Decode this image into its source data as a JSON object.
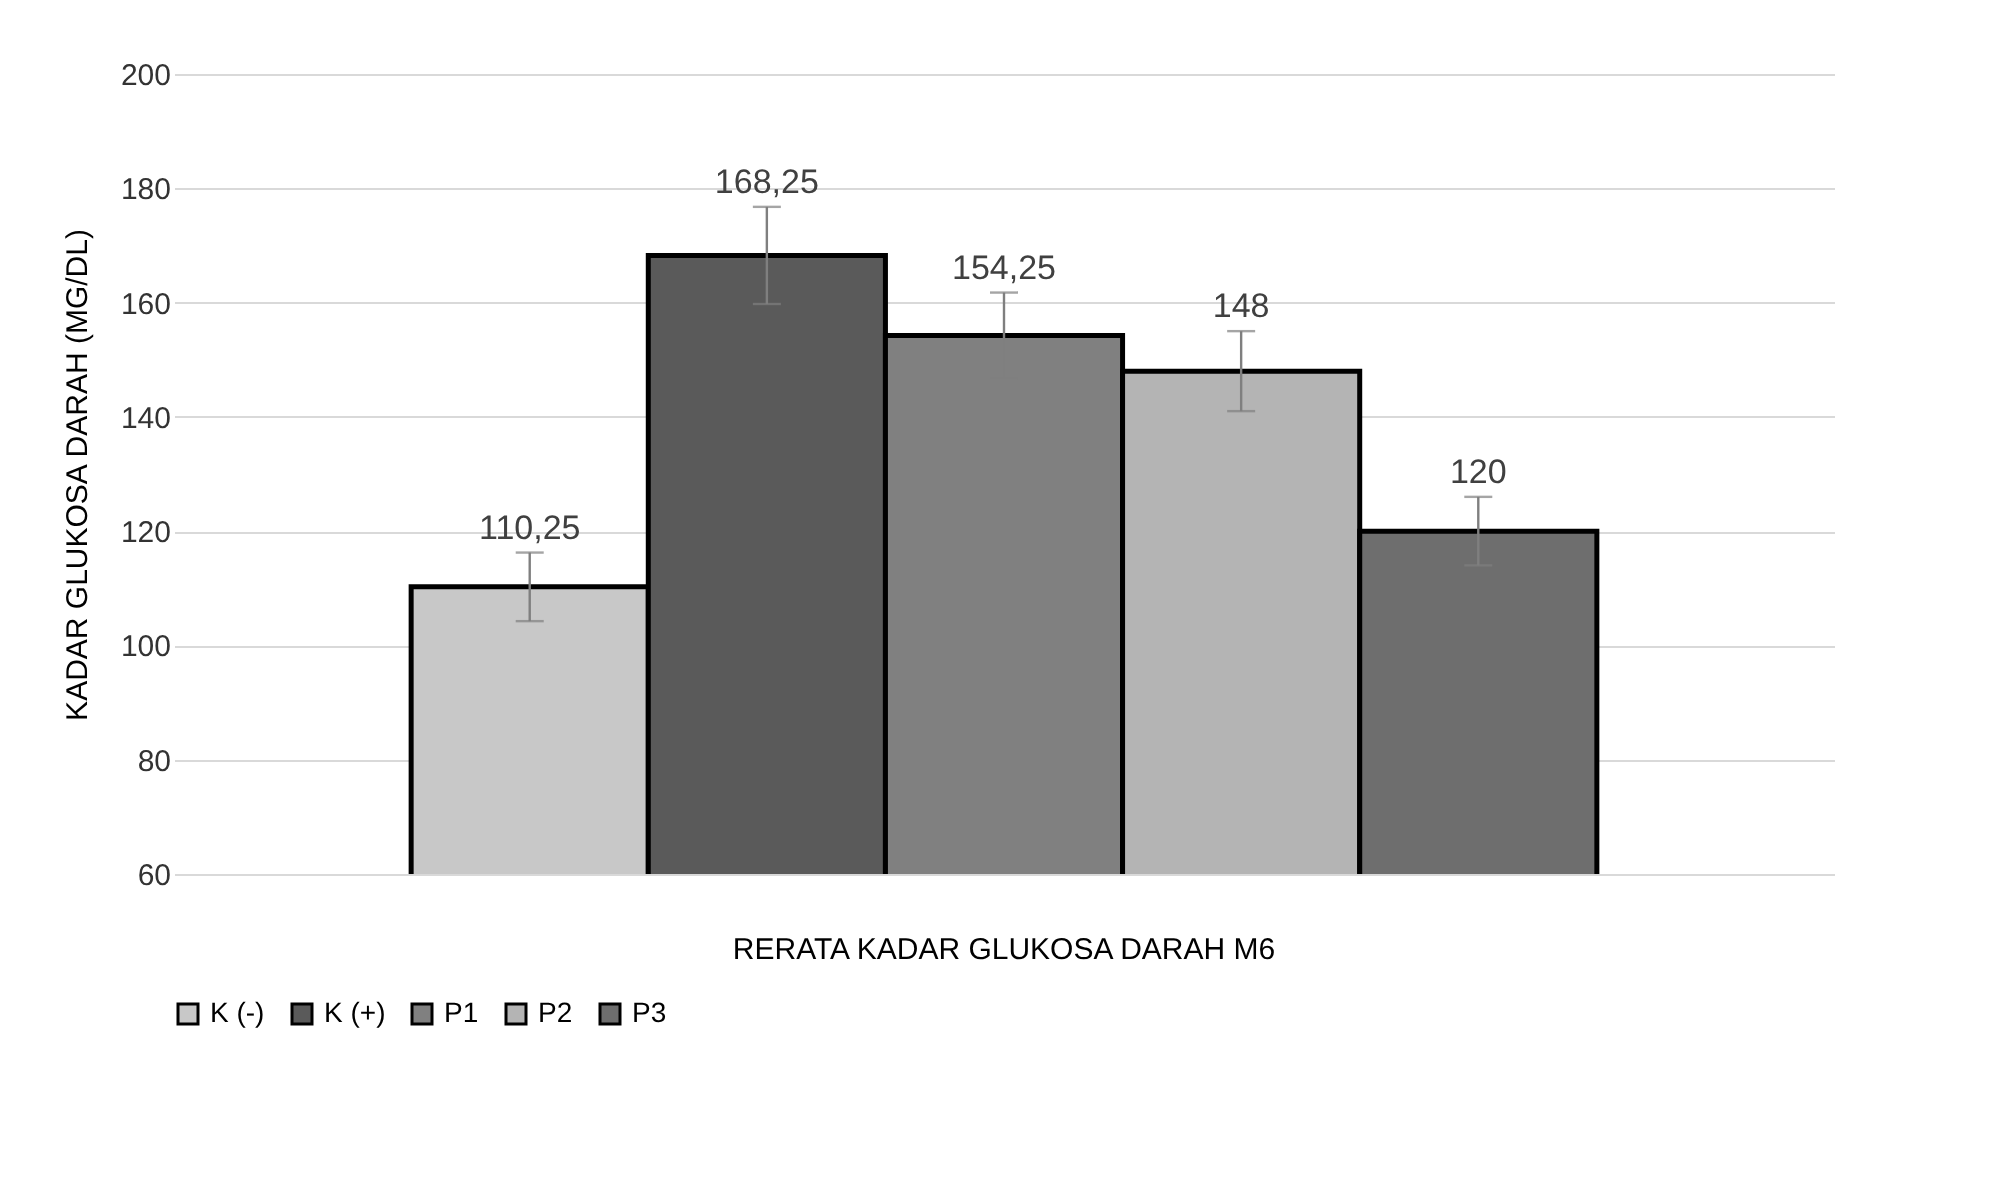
{
  "chart_data": {
    "type": "bar",
    "ylabel": "KADAR GLUKOSA DARAH (MG/DL)",
    "categories": [
      "RERATA KADAR GLUKOSA DARAH M6"
    ],
    "series": [
      {
        "name": "K (-)",
        "color": "#c8c8c8",
        "values": [
          110.25
        ],
        "errors": [
          6
        ],
        "value_labels": [
          "110,25"
        ]
      },
      {
        "name": "K (+)",
        "color": "#5a5a5a",
        "values": [
          168.25
        ],
        "errors": [
          8.5
        ],
        "value_labels": [
          "168,25"
        ]
      },
      {
        "name": "P1",
        "color": "#808080",
        "values": [
          154.25
        ],
        "errors": [
          7.5
        ],
        "value_labels": [
          "154,25"
        ]
      },
      {
        "name": "P2",
        "color": "#b4b4b4",
        "values": [
          148
        ],
        "errors": [
          7
        ],
        "value_labels": [
          "148"
        ]
      },
      {
        "name": "P3",
        "color": "#6e6e6e",
        "values": [
          120
        ],
        "errors": [
          6
        ],
        "value_labels": [
          "120"
        ]
      }
    ],
    "ylim": [
      60,
      200
    ],
    "yticks": [
      60,
      80,
      100,
      120,
      140,
      160,
      180,
      200
    ],
    "grid": "y",
    "legend": "bottom"
  }
}
